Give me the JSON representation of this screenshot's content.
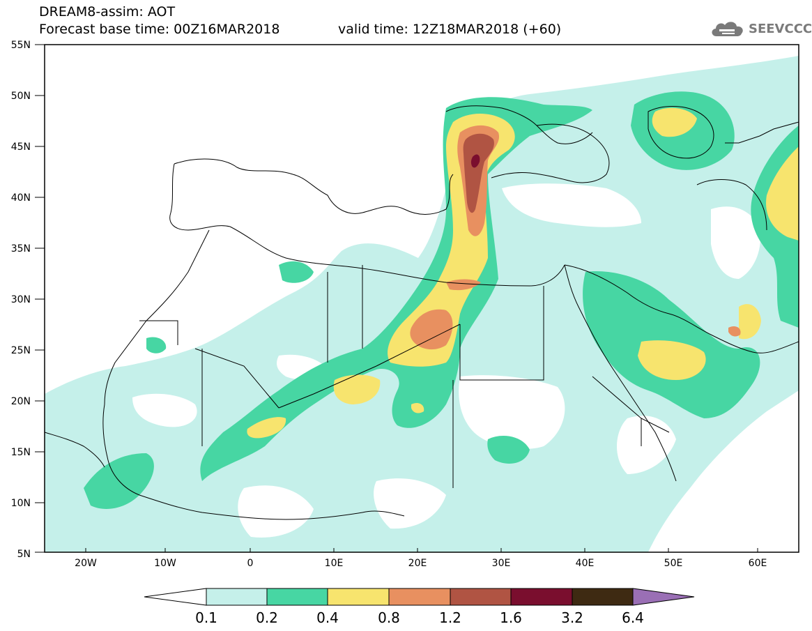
{
  "header": {
    "title": "DREAM8-assim: AOT",
    "base_time": "Forecast base time: 00Z16MAR2018",
    "valid_time": "valid time: 12Z18MAR2018 (+60)"
  },
  "logo": {
    "text": "SEEVCCC",
    "icon": "cloud-icon"
  },
  "axes": {
    "lat_labels": [
      "55N",
      "50N",
      "45N",
      "40N",
      "35N",
      "30N",
      "25N",
      "20N",
      "15N",
      "10N",
      "5N"
    ],
    "lon_labels": [
      "20W",
      "10W",
      "0",
      "10E",
      "20E",
      "30E",
      "40E",
      "50E",
      "60E"
    ],
    "lat_range": [
      5,
      55
    ],
    "lon_range": [
      -25,
      65
    ]
  },
  "colorbar": {
    "levels": [
      "0.1",
      "0.2",
      "0.4",
      "0.8",
      "1.2",
      "1.6",
      "3.2",
      "6.4"
    ],
    "colors": [
      "#c5f0ea",
      "#47d6a3",
      "#f7e46e",
      "#e89060",
      "#b05443",
      "#7a0e2e",
      "#3e2a12",
      "#9a6fb5"
    ]
  },
  "field": {
    "variable": "AOT",
    "colors": {
      "c1": "#c5f0ea",
      "c2": "#47d6a3",
      "c3": "#f7e46e",
      "c4": "#e89060",
      "c5": "#b05443",
      "c6": "#7a0e2e"
    }
  }
}
